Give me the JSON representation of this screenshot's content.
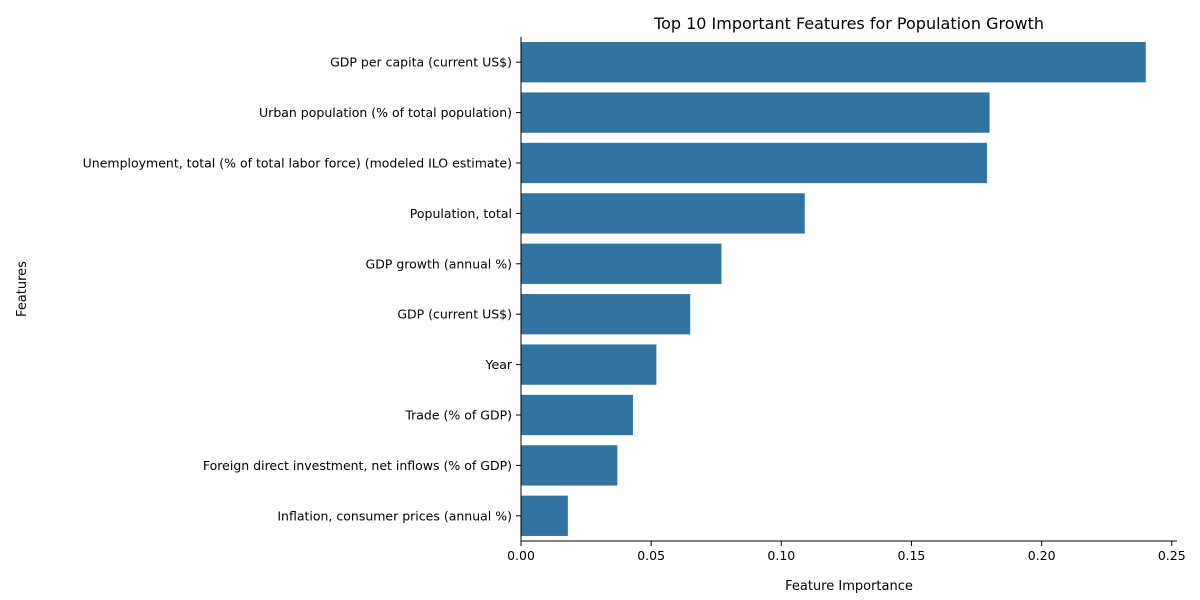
{
  "chart_data": {
    "type": "bar",
    "orientation": "horizontal",
    "title": "Top 10 Important Features for Population Growth",
    "xlabel": "Feature Importance",
    "ylabel": "Features",
    "categories": [
      "GDP per capita (current US$)",
      "Urban population (% of total population)",
      "Unemployment, total (% of total labor force) (modeled ILO estimate)",
      "Population, total",
      "GDP growth (annual %)",
      "GDP (current US$)",
      "Year",
      "Trade (% of GDP)",
      "Foreign direct investment, net inflows (% of GDP)",
      "Inflation, consumer prices (annual %)"
    ],
    "values": [
      0.24,
      0.18,
      0.179,
      0.109,
      0.077,
      0.065,
      0.052,
      0.043,
      0.037,
      0.018
    ],
    "xlim": [
      0,
      0.252
    ],
    "xticks": [
      0.0,
      0.05,
      0.1,
      0.15,
      0.2,
      0.25
    ],
    "xtick_labels": [
      "0.00",
      "0.05",
      "0.10",
      "0.15",
      "0.20",
      "0.25"
    ],
    "bar_color": "#3274a1",
    "grid": false
  }
}
